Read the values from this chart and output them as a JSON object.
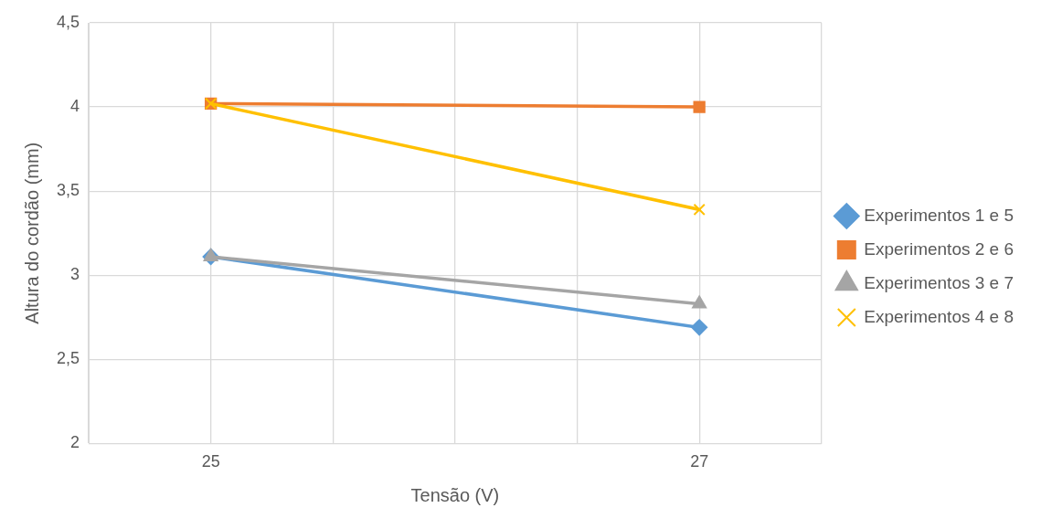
{
  "chart_data": {
    "type": "line",
    "xlabel": "Tensão (V)",
    "ylabel": "Altura do cordão (mm)",
    "xlim": [
      24.5,
      27.5
    ],
    "xticks": [
      {
        "value": 24.5,
        "label": null
      },
      25,
      {
        "value": 25.5,
        "label": null
      },
      {
        "value": 26,
        "label": null
      },
      {
        "value": 26.5,
        "label": null
      },
      27,
      {
        "value": 27.5,
        "label": null
      }
    ],
    "ylim": [
      2,
      4.5
    ],
    "yticks": [
      {
        "value": 2,
        "label": "2"
      },
      {
        "value": 2.5,
        "label": "2,5"
      },
      {
        "value": 3,
        "label": "3"
      },
      {
        "value": 3.5,
        "label": "3,5"
      },
      {
        "value": 4,
        "label": "4"
      },
      {
        "value": 4.5,
        "label": "4,5"
      }
    ],
    "x": [
      25,
      27
    ],
    "grid": true,
    "legend": "right",
    "line_style": "solid",
    "series": [
      {
        "name": "Experimentos 1 e 5",
        "color": "#5b9bd5",
        "marker": "diamond",
        "values": [
          3.11,
          2.69
        ]
      },
      {
        "name": "Experimentos 2 e 6",
        "color": "#ed7d31",
        "marker": "square",
        "values": [
          4.02,
          4.0
        ]
      },
      {
        "name": "Experimentos 3 e 7",
        "color": "#a5a5a5",
        "marker": "triangle",
        "values": [
          3.11,
          2.83
        ]
      },
      {
        "name": "Experimentos 4 e 8",
        "color": "#ffc000",
        "marker": "cross",
        "values": [
          4.02,
          3.39
        ]
      }
    ]
  }
}
